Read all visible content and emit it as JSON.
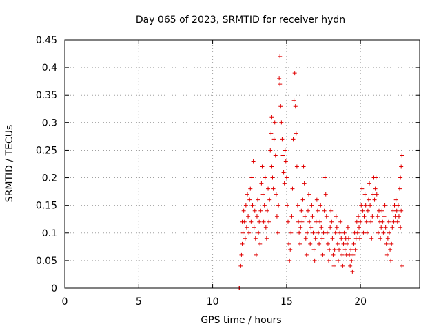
{
  "chart_data": {
    "type": "scatter",
    "title": "Day 065 of 2023, SRMTID for receiver hydn",
    "xlabel": "GPS time / hours",
    "ylabel": "SRMTID / TECUs",
    "xlim": [
      0,
      24
    ],
    "ylim": [
      0,
      0.45
    ],
    "xticks": [
      0,
      5,
      10,
      15,
      20
    ],
    "xtick_labels": [
      "0",
      "5",
      "10",
      "15",
      "20"
    ],
    "yticks": [
      0,
      0.05,
      0.1,
      0.15,
      0.2,
      0.25,
      0.3,
      0.35,
      0.4,
      0.45
    ],
    "ytick_labels": [
      "0",
      "0.05",
      "0.1",
      "0.15",
      "0.2",
      "0.25",
      "0.3",
      "0.35",
      "0.4",
      "0.45"
    ],
    "grid": true,
    "marker": "plus",
    "color": "#e00000",
    "series": [
      {
        "name": "SRMTID",
        "points": [
          [
            11.8,
            0.0
          ],
          [
            11.8,
            0.0
          ],
          [
            11.85,
            0.0
          ],
          [
            11.85,
            0.0
          ],
          [
            11.9,
            0.04
          ],
          [
            11.95,
            0.06
          ],
          [
            12.0,
            0.08
          ],
          [
            12.0,
            0.12
          ],
          [
            12.05,
            0.1
          ],
          [
            12.1,
            0.14
          ],
          [
            12.15,
            0.12
          ],
          [
            12.2,
            0.09
          ],
          [
            12.25,
            0.15
          ],
          [
            12.3,
            0.11
          ],
          [
            12.35,
            0.17
          ],
          [
            12.4,
            0.13
          ],
          [
            12.45,
            0.1
          ],
          [
            12.5,
            0.16
          ],
          [
            12.55,
            0.18
          ],
          [
            12.6,
            0.12
          ],
          [
            12.65,
            0.2
          ],
          [
            12.7,
            0.15
          ],
          [
            12.75,
            0.23
          ],
          [
            12.8,
            0.11
          ],
          [
            12.85,
            0.14
          ],
          [
            12.9,
            0.09
          ],
          [
            12.95,
            0.06
          ],
          [
            13.0,
            0.13
          ],
          [
            13.05,
            0.16
          ],
          [
            13.1,
            0.1
          ],
          [
            13.15,
            0.12
          ],
          [
            13.2,
            0.08
          ],
          [
            13.25,
            0.14
          ],
          [
            13.3,
            0.19
          ],
          [
            13.35,
            0.22
          ],
          [
            13.4,
            0.17
          ],
          [
            13.45,
            0.12
          ],
          [
            13.5,
            0.15
          ],
          [
            13.55,
            0.2
          ],
          [
            13.6,
            0.11
          ],
          [
            13.65,
            0.09
          ],
          [
            13.7,
            0.14
          ],
          [
            13.75,
            0.18
          ],
          [
            13.8,
            0.12
          ],
          [
            13.85,
            0.16
          ],
          [
            13.9,
            0.25
          ],
          [
            13.95,
            0.28
          ],
          [
            14.0,
            0.31
          ],
          [
            14.0,
            0.22
          ],
          [
            14.05,
            0.2
          ],
          [
            14.1,
            0.18
          ],
          [
            14.15,
            0.27
          ],
          [
            14.2,
            0.3
          ],
          [
            14.25,
            0.24
          ],
          [
            14.3,
            0.17
          ],
          [
            14.35,
            0.13
          ],
          [
            14.4,
            0.1
          ],
          [
            14.45,
            0.15
          ],
          [
            14.5,
            0.38
          ],
          [
            14.55,
            0.42
          ],
          [
            14.55,
            0.37
          ],
          [
            14.6,
            0.33
          ],
          [
            14.65,
            0.3
          ],
          [
            14.7,
            0.27
          ],
          [
            14.75,
            0.24
          ],
          [
            14.8,
            0.21
          ],
          [
            14.85,
            0.19
          ],
          [
            14.9,
            0.25
          ],
          [
            14.95,
            0.23
          ],
          [
            15.0,
            0.2
          ],
          [
            15.05,
            0.15
          ],
          [
            15.1,
            0.12
          ],
          [
            15.15,
            0.08
          ],
          [
            15.2,
            0.05
          ],
          [
            15.25,
            0.07
          ],
          [
            15.3,
            0.1
          ],
          [
            15.35,
            0.13
          ],
          [
            15.4,
            0.18
          ],
          [
            15.45,
            0.27
          ],
          [
            15.5,
            0.34
          ],
          [
            15.55,
            0.39
          ],
          [
            15.6,
            0.33
          ],
          [
            15.65,
            0.28
          ],
          [
            15.7,
            0.22
          ],
          [
            15.75,
            0.15
          ],
          [
            15.8,
            0.12
          ],
          [
            15.85,
            0.1
          ],
          [
            15.9,
            0.08
          ],
          [
            15.95,
            0.11
          ],
          [
            16.0,
            0.14
          ],
          [
            16.05,
            0.12
          ],
          [
            16.1,
            0.16
          ],
          [
            16.15,
            0.22
          ],
          [
            16.2,
            0.19
          ],
          [
            16.25,
            0.13
          ],
          [
            16.3,
            0.09
          ],
          [
            16.35,
            0.06
          ],
          [
            16.4,
            0.1
          ],
          [
            16.45,
            0.14
          ],
          [
            16.5,
            0.17
          ],
          [
            16.55,
            0.12
          ],
          [
            16.6,
            0.08
          ],
          [
            16.65,
            0.11
          ],
          [
            16.7,
            0.15
          ],
          [
            16.75,
            0.13
          ],
          [
            16.8,
            0.1
          ],
          [
            16.85,
            0.07
          ],
          [
            16.9,
            0.05
          ],
          [
            16.95,
            0.09
          ],
          [
            17.0,
            0.12
          ],
          [
            17.05,
            0.16
          ],
          [
            17.1,
            0.14
          ],
          [
            17.15,
            0.1
          ],
          [
            17.2,
            0.08
          ],
          [
            17.25,
            0.12
          ],
          [
            17.3,
            0.15
          ],
          [
            17.35,
            0.11
          ],
          [
            17.4,
            0.09
          ],
          [
            17.45,
            0.06
          ],
          [
            17.5,
            0.1
          ],
          [
            17.55,
            0.14
          ],
          [
            17.6,
            0.2
          ],
          [
            17.65,
            0.17
          ],
          [
            17.7,
            0.13
          ],
          [
            17.75,
            0.1
          ],
          [
            17.8,
            0.08
          ],
          [
            17.85,
            0.05
          ],
          [
            17.9,
            0.07
          ],
          [
            17.95,
            0.11
          ],
          [
            18.0,
            0.14
          ],
          [
            18.05,
            0.12
          ],
          [
            18.1,
            0.09
          ],
          [
            18.15,
            0.06
          ],
          [
            18.2,
            0.04
          ],
          [
            18.25,
            0.07
          ],
          [
            18.3,
            0.1
          ],
          [
            18.35,
            0.13
          ],
          [
            18.4,
            0.11
          ],
          [
            18.45,
            0.08
          ],
          [
            18.5,
            0.05
          ],
          [
            18.55,
            0.07
          ],
          [
            18.6,
            0.1
          ],
          [
            18.65,
            0.12
          ],
          [
            18.7,
            0.09
          ],
          [
            18.75,
            0.06
          ],
          [
            18.8,
            0.04
          ],
          [
            18.85,
            0.08
          ],
          [
            18.9,
            0.1
          ],
          [
            18.95,
            0.07
          ],
          [
            19.0,
            0.09
          ],
          [
            19.05,
            0.06
          ],
          [
            19.1,
            0.08
          ],
          [
            19.15,
            0.11
          ],
          [
            19.2,
            0.09
          ],
          [
            19.25,
            0.06
          ],
          [
            19.3,
            0.04
          ],
          [
            19.35,
            0.07
          ],
          [
            19.4,
            0.05
          ],
          [
            19.45,
            0.03
          ],
          [
            19.5,
            0.06
          ],
          [
            19.55,
            0.08
          ],
          [
            19.6,
            0.1
          ],
          [
            19.65,
            0.07
          ],
          [
            19.7,
            0.09
          ],
          [
            19.75,
            0.12
          ],
          [
            19.8,
            0.1
          ],
          [
            19.85,
            0.13
          ],
          [
            19.9,
            0.11
          ],
          [
            19.95,
            0.09
          ],
          [
            20.0,
            0.12
          ],
          [
            20.05,
            0.15
          ],
          [
            20.1,
            0.18
          ],
          [
            20.15,
            0.14
          ],
          [
            20.2,
            0.1
          ],
          [
            20.25,
            0.13
          ],
          [
            20.3,
            0.17
          ],
          [
            20.35,
            0.15
          ],
          [
            20.4,
            0.12
          ],
          [
            20.45,
            0.1
          ],
          [
            20.5,
            0.14
          ],
          [
            20.55,
            0.16
          ],
          [
            20.6,
            0.19
          ],
          [
            20.65,
            0.15
          ],
          [
            20.7,
            0.12
          ],
          [
            20.75,
            0.09
          ],
          [
            20.8,
            0.13
          ],
          [
            20.85,
            0.17
          ],
          [
            20.9,
            0.2
          ],
          [
            20.95,
            0.16
          ],
          [
            21.0,
            0.18
          ],
          [
            21.05,
            0.2
          ],
          [
            21.1,
            0.17
          ],
          [
            21.15,
            0.13
          ],
          [
            21.2,
            0.1
          ],
          [
            21.25,
            0.14
          ],
          [
            21.3,
            0.12
          ],
          [
            21.35,
            0.09
          ],
          [
            21.4,
            0.11
          ],
          [
            21.45,
            0.14
          ],
          [
            21.5,
            0.12
          ],
          [
            21.55,
            0.1
          ],
          [
            21.6,
            0.13
          ],
          [
            21.65,
            0.15
          ],
          [
            21.7,
            0.11
          ],
          [
            21.75,
            0.08
          ],
          [
            21.8,
            0.06
          ],
          [
            21.85,
            0.09
          ],
          [
            21.9,
            0.12
          ],
          [
            21.95,
            0.1
          ],
          [
            22.0,
            0.07
          ],
          [
            22.05,
            0.05
          ],
          [
            22.1,
            0.08
          ],
          [
            22.15,
            0.11
          ],
          [
            22.2,
            0.14
          ],
          [
            22.25,
            0.12
          ],
          [
            22.3,
            0.15
          ],
          [
            22.35,
            0.13
          ],
          [
            22.4,
            0.16
          ],
          [
            22.45,
            0.14
          ],
          [
            22.5,
            0.12
          ],
          [
            22.55,
            0.15
          ],
          [
            22.6,
            0.13
          ],
          [
            22.65,
            0.18
          ],
          [
            22.7,
            0.2
          ],
          [
            22.75,
            0.22
          ],
          [
            22.8,
            0.24
          ],
          [
            22.8,
            0.04
          ],
          [
            22.75,
            0.14
          ],
          [
            22.7,
            0.11
          ]
        ]
      }
    ]
  }
}
